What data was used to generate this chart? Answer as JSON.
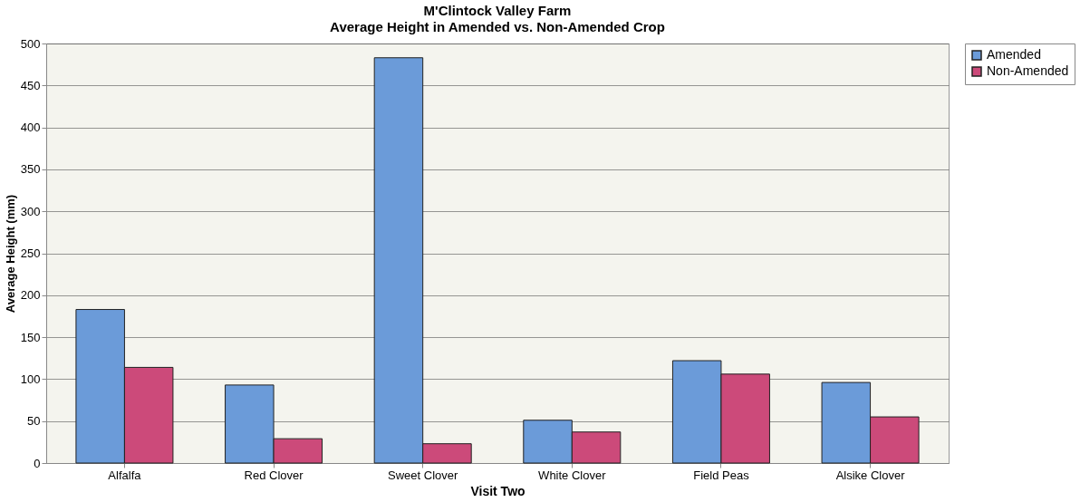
{
  "chart_data": {
    "type": "bar",
    "title": "M'Clintock Valley Farm",
    "subtitle": "Average Height in Amended vs. Non-Amended Crop",
    "xlabel": "Visit Two",
    "ylabel": "Average Height (mm)",
    "categories": [
      "Alfalfa",
      "Red Clover",
      "Sweet Clover",
      "White Clover",
      "Field Peas",
      "Alsike Clover"
    ],
    "series": [
      {
        "name": "Amended",
        "color": "#6b9bd9",
        "values": [
          183,
          93,
          483,
          51,
          122,
          96
        ]
      },
      {
        "name": "Non-Amended",
        "color": "#cc4a7a",
        "values": [
          114,
          29,
          23,
          37,
          106,
          55
        ]
      }
    ],
    "ylim": [
      0,
      500
    ],
    "yticks": [
      0,
      50,
      100,
      150,
      200,
      250,
      300,
      350,
      400,
      450,
      500
    ],
    "grid": "y",
    "legend": "right"
  }
}
